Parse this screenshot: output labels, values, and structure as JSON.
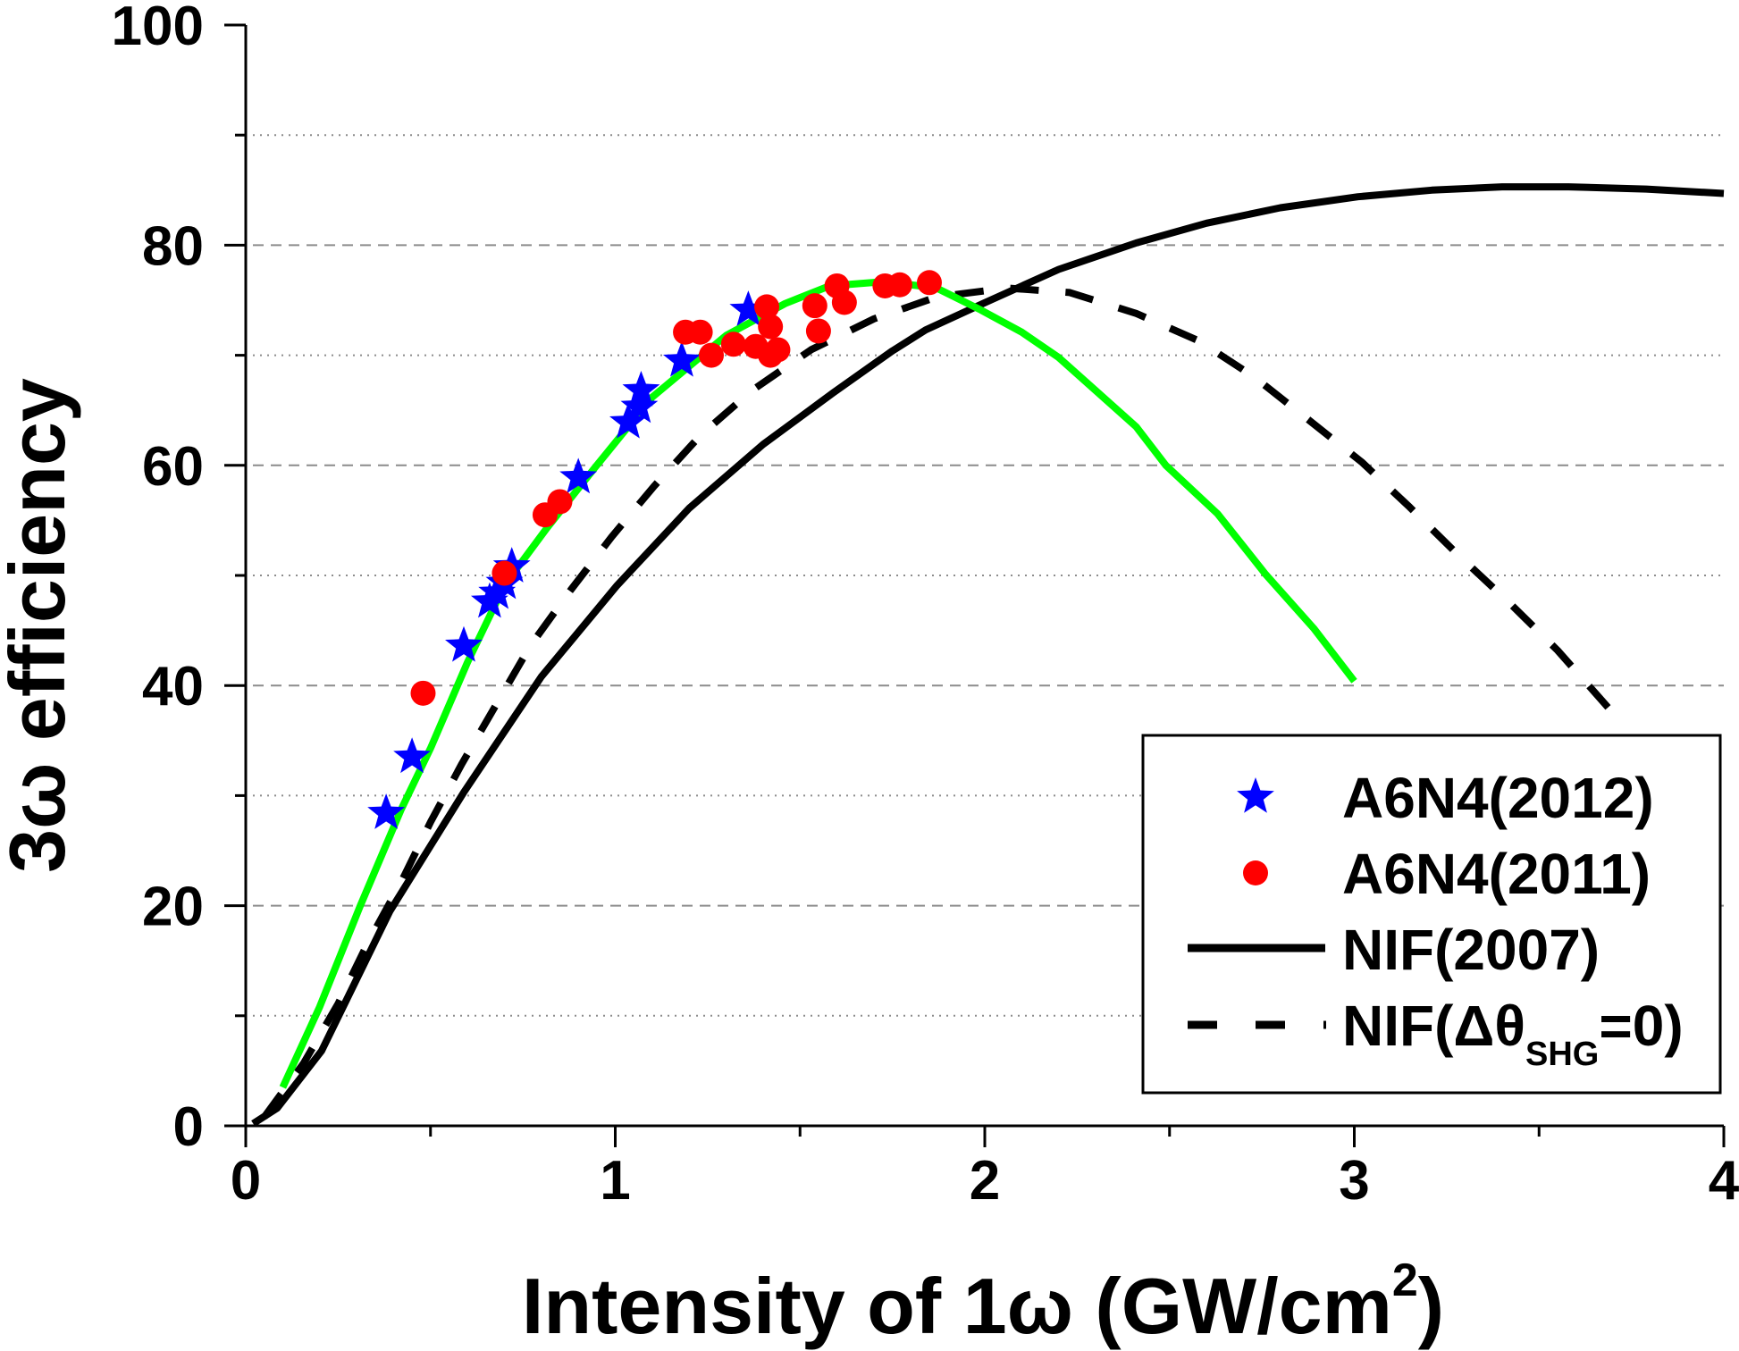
{
  "chart_data": {
    "type": "scatter",
    "title": "",
    "xlabel": "Intensity of 1ω  (GW/cm²)",
    "xlabel_parts": {
      "main": "Intensity of 1ω  (GW/cm",
      "sup": "2",
      "close": ")"
    },
    "ylabel": "3ω efficiency",
    "xlim": [
      0,
      4
    ],
    "ylim": [
      0,
      100
    ],
    "x_ticks": [
      0,
      1,
      2,
      3,
      4
    ],
    "x_tick_labels": [
      "0",
      "1",
      "2",
      "3",
      "4"
    ],
    "x_minor_ticks": [
      0.5,
      1.5,
      2.5,
      3.5
    ],
    "y_ticks": [
      0,
      20,
      40,
      60,
      80,
      100
    ],
    "y_tick_labels": [
      "0",
      "20",
      "40",
      "60",
      "80",
      "100"
    ],
    "y_minor_ticks": [
      10,
      30,
      50,
      70,
      90
    ],
    "grid": {
      "major_y": "dashed",
      "minor_y": "dotted",
      "color": "#8c8c8c"
    },
    "legend_position": "bottom-right",
    "series": [
      {
        "name": "A6N4(2012)",
        "kind": "scatter",
        "marker": "star",
        "color": "#0000ff",
        "points": [
          [
            0.38,
            28.4
          ],
          [
            0.45,
            33.5
          ],
          [
            0.59,
            43.6
          ],
          [
            0.66,
            47.6
          ],
          [
            0.68,
            48.4
          ],
          [
            0.7,
            49.3
          ],
          [
            0.72,
            50.8
          ],
          [
            0.9,
            58.9
          ],
          [
            1.035,
            63.9
          ],
          [
            1.065,
            65.3
          ],
          [
            1.07,
            66.8
          ],
          [
            1.18,
            69.5
          ],
          [
            1.36,
            74.1
          ]
        ]
      },
      {
        "name": "A6N4(2011)",
        "kind": "scatter",
        "marker": "circle",
        "color": "#ff0000",
        "points": [
          [
            0.48,
            39.3
          ],
          [
            0.7,
            50.2
          ],
          [
            0.81,
            55.5
          ],
          [
            0.85,
            56.7
          ],
          [
            1.19,
            72.1
          ],
          [
            1.23,
            72.1
          ],
          [
            1.26,
            70.0
          ],
          [
            1.32,
            71.0
          ],
          [
            1.38,
            70.8
          ],
          [
            1.41,
            74.4
          ],
          [
            1.42,
            72.6
          ],
          [
            1.42,
            70.0
          ],
          [
            1.44,
            70.5
          ],
          [
            1.54,
            74.5
          ],
          [
            1.55,
            72.2
          ],
          [
            1.6,
            76.3
          ],
          [
            1.62,
            74.8
          ],
          [
            1.73,
            76.3
          ],
          [
            1.77,
            76.4
          ],
          [
            1.85,
            76.6
          ]
        ]
      },
      {
        "name": "NIF(2007)",
        "kind": "line",
        "style": "solid",
        "color": "#000000",
        "points": [
          [
            0.02,
            0.2
          ],
          [
            0.085,
            1.6
          ],
          [
            0.205,
            6.8
          ],
          [
            0.39,
            19.5
          ],
          [
            0.59,
            30.3
          ],
          [
            0.8,
            40.8
          ],
          [
            1.005,
            49.1
          ],
          [
            1.2,
            56.1
          ],
          [
            1.4,
            61.9
          ],
          [
            1.59,
            66.6
          ],
          [
            1.75,
            70.4
          ],
          [
            1.84,
            72.3
          ],
          [
            1.995,
            74.7
          ],
          [
            2.2,
            77.8
          ],
          [
            2.41,
            80.2
          ],
          [
            2.6,
            82.0
          ],
          [
            2.8,
            83.4
          ],
          [
            3.01,
            84.4
          ],
          [
            3.21,
            85.0
          ],
          [
            3.4,
            85.3
          ],
          [
            3.58,
            85.3
          ],
          [
            3.79,
            85.1
          ],
          [
            4.0,
            84.7
          ]
        ]
      },
      {
        "name": "NIF(Δθ_SHG=0)",
        "kind": "line",
        "style": "dashed",
        "color": "#000000",
        "points": [
          [
            0.05,
            0.8
          ],
          [
            0.157,
            5.7
          ],
          [
            0.25,
            11.1
          ],
          [
            0.33,
            16.6
          ],
          [
            0.42,
            22.1
          ],
          [
            0.5,
            27.6
          ],
          [
            0.585,
            32.9
          ],
          [
            0.68,
            38.4
          ],
          [
            0.77,
            43.6
          ],
          [
            0.88,
            48.7
          ],
          [
            0.99,
            53.5
          ],
          [
            1.105,
            58.1
          ],
          [
            1.23,
            62.7
          ],
          [
            1.37,
            66.8
          ],
          [
            1.53,
            70.5
          ],
          [
            1.7,
            73.3
          ],
          [
            1.87,
            75.3
          ],
          [
            2.06,
            76.1
          ],
          [
            2.23,
            75.7
          ],
          [
            2.41,
            73.8
          ],
          [
            2.58,
            71.3
          ],
          [
            2.73,
            68.0
          ],
          [
            2.87,
            64.3
          ],
          [
            3.02,
            60.3
          ],
          [
            3.15,
            56.2
          ],
          [
            3.28,
            51.9
          ],
          [
            3.42,
            47.5
          ],
          [
            3.55,
            43.2
          ],
          [
            3.7,
            37.5
          ]
        ]
      },
      {
        "name": "fit (green)",
        "kind": "line",
        "style": "solid",
        "color": "#00ff00",
        "in_legend": false,
        "points": [
          [
            0.1,
            3.5
          ],
          [
            0.2,
            10.8
          ],
          [
            0.31,
            20.0
          ],
          [
            0.42,
            28.7
          ],
          [
            0.5,
            34.3
          ],
          [
            0.6,
            42.1
          ],
          [
            0.7,
            49.1
          ],
          [
            0.815,
            54.3
          ],
          [
            0.945,
            59.8
          ],
          [
            1.1,
            66.2
          ],
          [
            1.3,
            71.8
          ],
          [
            1.46,
            74.7
          ],
          [
            1.58,
            76.3
          ],
          [
            1.73,
            76.7
          ],
          [
            1.87,
            76.1
          ],
          [
            1.99,
            74.1
          ],
          [
            2.1,
            72.1
          ],
          [
            2.2,
            69.8
          ],
          [
            2.3,
            66.8
          ],
          [
            2.41,
            63.5
          ],
          [
            2.49,
            60.0
          ],
          [
            2.63,
            55.6
          ],
          [
            2.76,
            50.1
          ],
          [
            2.89,
            45.2
          ],
          [
            3.0,
            40.4
          ]
        ]
      }
    ],
    "legend": [
      {
        "label": "A6N4(2012)",
        "marker": "star",
        "color": "#0000ff"
      },
      {
        "label": "A6N4(2011)",
        "marker": "circle",
        "color": "#ff0000"
      },
      {
        "label": "NIF(2007)",
        "marker": "line-solid",
        "color": "#000000"
      },
      {
        "label_parts": {
          "main": "NIF(Δθ",
          "sub": "SHG",
          "close": "=0)"
        },
        "label": "NIF(Δθ_SHG=0)",
        "marker": "line-dashed",
        "color": "#000000"
      }
    ]
  }
}
